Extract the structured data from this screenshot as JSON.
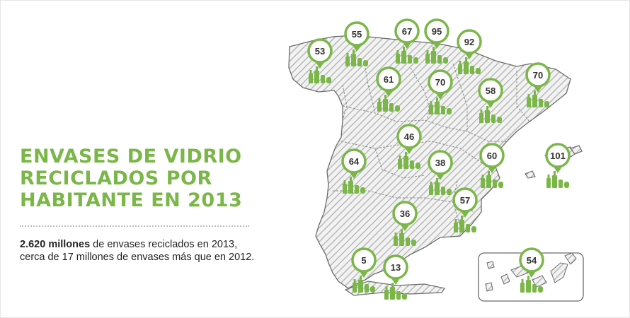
{
  "title": {
    "line1": "ENVASES DE VIDRIO",
    "line2": "RECICLADOS POR",
    "line3": "HABITANTE EN 2013"
  },
  "summary": {
    "highlight": "2.620 millones",
    "line1_rest": " de envases reciclados en 2013,",
    "line2": "cerca de 17 millones de envases más que en 2012."
  },
  "colors": {
    "accent": "#7ab648",
    "map_fill": "#e4e4e4",
    "map_stroke": "#6b6b6b",
    "text": "#222222"
  },
  "icons": {
    "marker": "map-pin-icon",
    "bottles": "glass-bottles-icon"
  },
  "regions": [
    {
      "id": "galicia",
      "value": "53"
    },
    {
      "id": "asturias",
      "value": "55"
    },
    {
      "id": "cantabria",
      "value": "67"
    },
    {
      "id": "pais-vasco",
      "value": "95"
    },
    {
      "id": "navarra",
      "value": "92"
    },
    {
      "id": "castilla-leon",
      "value": "61"
    },
    {
      "id": "la-rioja",
      "value": "70"
    },
    {
      "id": "aragon",
      "value": "58"
    },
    {
      "id": "cataluna",
      "value": "70"
    },
    {
      "id": "madrid",
      "value": "46"
    },
    {
      "id": "extremadura",
      "value": "64"
    },
    {
      "id": "castilla-la-mancha",
      "value": "38"
    },
    {
      "id": "valencia",
      "value": "60"
    },
    {
      "id": "baleares",
      "value": "101"
    },
    {
      "id": "murcia",
      "value": "57"
    },
    {
      "id": "andalucia",
      "value": "36"
    },
    {
      "id": "ceuta",
      "value": "5"
    },
    {
      "id": "melilla",
      "value": "13"
    },
    {
      "id": "canarias",
      "value": "54"
    }
  ]
}
